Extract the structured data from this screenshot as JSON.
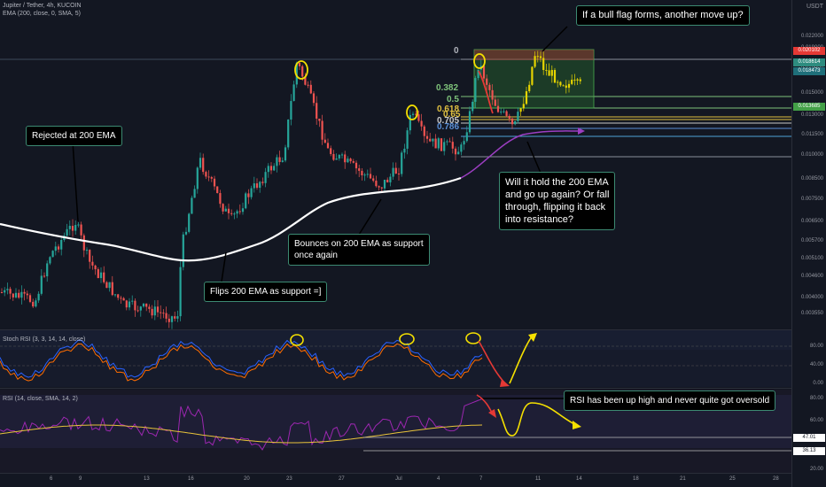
{
  "header": {
    "symbol_line": "Jupiter / Tether, 4h, KUCOIN",
    "indicator_line": "EMA (200, close, 0, SMA, 5)",
    "currency": "USDT"
  },
  "annotations": {
    "rejected": "Rejected at 200 EMA",
    "flips": "Flips 200 EMA as support =]",
    "bounces_1": "Bounces on 200 EMA as support",
    "bounces_2": "once again",
    "bullflag": "If a bull flag forms, another move up?",
    "hold_1": "Will it hold the 200 EMA",
    "hold_2": "and go up again? Or fall",
    "hold_3": "through, flipping it back",
    "hold_4": "into resistance?",
    "rsi_note": "RSI has been up high and never quite got oversold"
  },
  "fib": {
    "zero": "0",
    "f382": "0.382",
    "f5": "0.5",
    "f618": "0.618",
    "f65": "0.65",
    "f705": "0.705",
    "f786": "0.786"
  },
  "price_axis": [
    "0.022000",
    "0.019000",
    "0.018000",
    "0.015000",
    "0.013000",
    "0.011500",
    "0.010000",
    "0.008500",
    "0.007500",
    "0.006500",
    "0.005700",
    "0.005100",
    "0.004600",
    "0.004000",
    "0.003550"
  ],
  "price_badges": {
    "red": "0.020102",
    "teal1": "0.018614",
    "teal2": "0.018473",
    "green": "0.013685"
  },
  "stoch": {
    "label": "Stoch RSI (3, 3, 14, 14, close)",
    "axis": [
      "80.00",
      "40.00",
      "0.00"
    ]
  },
  "rsi": {
    "label": "RSI (14, close, SMA, 14, 2)",
    "axis": [
      "80.00",
      "60.00",
      "20.00"
    ],
    "badge1": "47.01",
    "badge2": "36.13"
  },
  "time_axis": [
    "6",
    "9",
    "13",
    "16",
    "20",
    "23",
    "27",
    "Jul",
    "4",
    "7",
    "11",
    "14",
    "18",
    "21",
    "25",
    "28"
  ],
  "colors": {
    "background": "#131722",
    "up": "#26a69a",
    "down": "#ef5350",
    "ema": "#ffffff",
    "fib_box": "#2e7d32",
    "annotation_border": "#3c8a72"
  }
}
